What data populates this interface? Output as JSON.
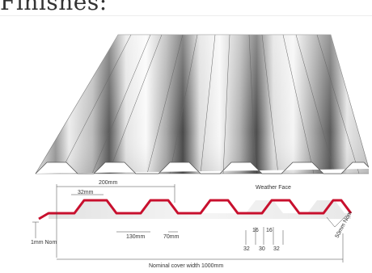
{
  "page": {
    "heading": "Finishes:"
  },
  "figure": {
    "sheet_colors": {
      "light": "#f4f4f4",
      "mid": "#bdbdbd",
      "dark": "#555555",
      "profile": "#c8102e"
    },
    "dimension_labels": {
      "pitch": "200mm",
      "crest": "32mm",
      "depth": "1mm Nom",
      "trough": "130mm",
      "rib_base": "70mm",
      "rib_a": "16",
      "rib_b": "16",
      "edge_a": "32",
      "gap": "30",
      "edge_b": "32",
      "weather_face": "Weather Face",
      "side_lap": "50mm Nom",
      "cover_width": "Nominal cover width 1000mm"
    }
  }
}
